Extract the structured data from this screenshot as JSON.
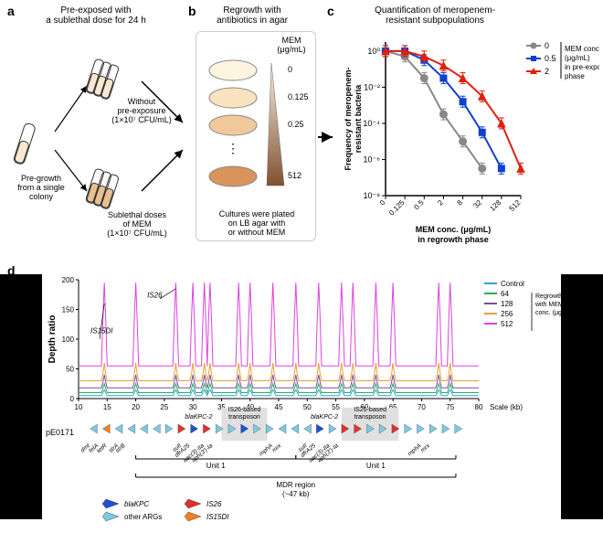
{
  "panelA": {
    "label": "a",
    "title": "Pre-exposed with\na sublethal dose for 24 h",
    "preGrowthLabel": "Pre-growth\nfrom a single\ncolony",
    "withoutLabel": "Without\npre-exposure\n(1×10⁷ CFU/mL)",
    "sublethalLabel": "Sublethal doses\nof MEM\n(1×10⁷ CFU/mL)"
  },
  "panelB": {
    "label": "b",
    "title": "Regrowth with\nantibiotics in agar",
    "memLabel": "MEM\n(μg/mL)",
    "plateColors": [
      "#fdf5e0",
      "#f8e2c0",
      "#f0c89a",
      "#d8945a"
    ],
    "plateLabels": [
      "0",
      "0.125",
      "0.25",
      "512"
    ],
    "ellipsis": "⋮",
    "caption": "Cultures were plated\non LB agar with\nor without MEM"
  },
  "panelC": {
    "label": "c",
    "title": "Quantification of meropenem-\nresistant subpopulations",
    "yLabel": "Frequency of meropenem-\nresistant bacteria",
    "xLabel": "MEM conc. (μg/mL)\nin regrowth phase",
    "legendTitle": "MEM conc.\n(μg/mL)\nin pre-exposure\nphase",
    "xTicks": [
      "0",
      "0.125",
      "0.5",
      "2",
      "8",
      "32",
      "128",
      "512"
    ],
    "yTicks": [
      "10⁻⁸",
      "10⁻⁶",
      "10⁻⁴",
      "10⁻²",
      "10⁰"
    ],
    "series": [
      {
        "name": "0",
        "color": "#888888",
        "marker": "circle",
        "points": [
          [
            0,
            0
          ],
          [
            1,
            -0.3
          ],
          [
            2,
            -1.5
          ],
          [
            3,
            -3.5
          ],
          [
            4,
            -5
          ],
          [
            5,
            -6.5
          ]
        ]
      },
      {
        "name": "0.5",
        "color": "#1040d0",
        "marker": "square",
        "points": [
          [
            0,
            0
          ],
          [
            1,
            0
          ],
          [
            2,
            -0.5
          ],
          [
            3,
            -1.5
          ],
          [
            4,
            -2.8
          ],
          [
            5,
            -4.5
          ],
          [
            6,
            -6.5
          ]
        ]
      },
      {
        "name": "2",
        "color": "#e02010",
        "marker": "triangle",
        "points": [
          [
            0,
            0
          ],
          [
            1,
            0
          ],
          [
            2,
            -0.3
          ],
          [
            3,
            -0.8
          ],
          [
            4,
            -1.5
          ],
          [
            5,
            -2.5
          ],
          [
            6,
            -4
          ],
          [
            7,
            -6.5
          ]
        ]
      }
    ],
    "xlim": [
      0,
      7
    ],
    "ylim": [
      -8,
      0.5
    ],
    "background": "#ffffff",
    "axisColor": "#000000"
  },
  "panelD": {
    "label": "d",
    "yLabel": "Depth ratio",
    "yTicks": [
      0,
      50,
      100,
      150,
      200
    ],
    "xTicks": [
      10,
      15,
      20,
      25,
      30,
      35,
      40,
      45,
      50,
      55,
      60,
      65,
      70,
      75,
      80
    ],
    "xLabel": "Scale (kb)",
    "plasmid": "pE0171",
    "legendTitle": "Regrowth\nwith MEM\nconc. (μg/mL)",
    "legendItems": [
      {
        "label": "Control",
        "color": "#30a0e0"
      },
      {
        "label": "64",
        "color": "#20b060"
      },
      {
        "label": "128",
        "color": "#7a4aa0"
      },
      {
        "label": "256",
        "color": "#e8a030"
      },
      {
        "label": "512",
        "color": "#e040e0"
      }
    ],
    "annotations": {
      "is15di": "IS15DI",
      "is26": "IS26",
      "blaKPC": "blaKPC-2",
      "transposon": "IS26-based\ntransposon",
      "unit1": "Unit 1",
      "mdr": "MDR region\n(~47 kb)",
      "genes": [
        "dmt",
        "telA",
        "tetR",
        "strA",
        "strB",
        "sulI",
        "dfrA25",
        "mphA",
        "mrx",
        "aac(3)-IIa",
        "aph(3')-Ia"
      ]
    },
    "legendDiamonds": [
      {
        "label": "blaKPC",
        "color": "#2050d0"
      },
      {
        "label": "IS26",
        "color": "#e03030"
      },
      {
        "label": "other ARGs",
        "color": "#80c8e0"
      },
      {
        "label": "IS15DI",
        "color": "#f08020"
      }
    ],
    "traces": {
      "baseline": 10,
      "peaks": [
        14.5,
        20,
        27,
        30,
        32,
        33,
        38,
        40,
        44,
        48,
        52,
        56,
        58,
        62,
        65,
        73,
        75
      ],
      "peakHeights": {
        "Control": 15,
        "64": 25,
        "128": 40,
        "256": 60,
        "512": 195
      }
    },
    "background": "#ffffff"
  }
}
